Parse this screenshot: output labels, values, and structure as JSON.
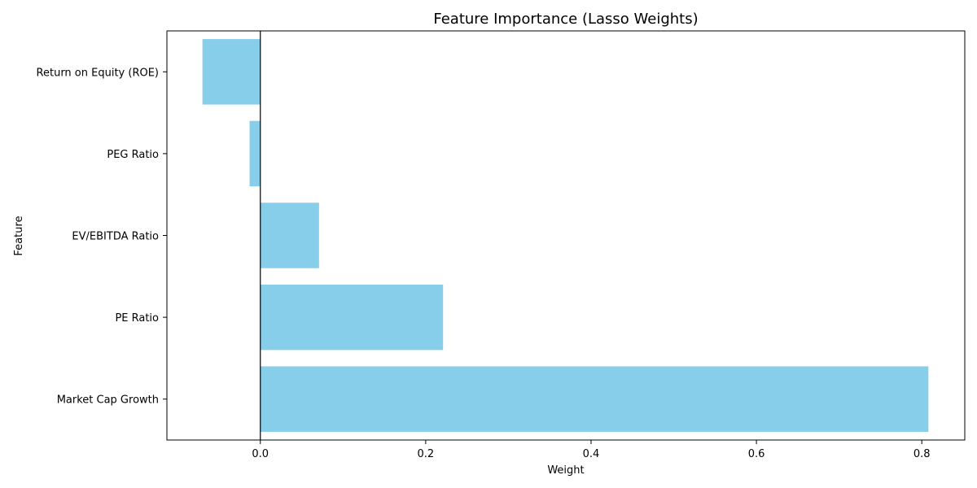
{
  "chart_data": {
    "type": "bar",
    "orientation": "horizontal",
    "title": "Feature Importance (Lasso Weights)",
    "xlabel": "Weight",
    "ylabel": "Feature",
    "categories": [
      "Market Cap Growth",
      "PE Ratio",
      "EV/EBITDA Ratio",
      "PEG Ratio",
      "Return on Equity (ROE)"
    ],
    "values": [
      0.808,
      0.221,
      0.071,
      -0.013,
      -0.07
    ],
    "xlim": [
      -0.113,
      0.852
    ],
    "xticks": [
      "0.0",
      "0.2",
      "0.4",
      "0.6",
      "0.8"
    ],
    "bar_color": "#87ceeb",
    "grid": false,
    "zero_line": true
  }
}
